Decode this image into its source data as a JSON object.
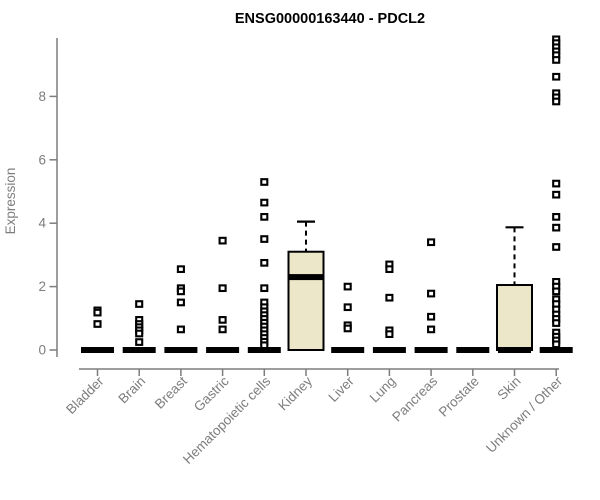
{
  "chart_data": {
    "type": "boxplot",
    "title": "ENSG00000163440 - PDCL2",
    "ylabel": "Expression",
    "xlabel": "",
    "ylim": [
      0,
      9.9
    ],
    "yticks": [
      0,
      2,
      4,
      6,
      8
    ],
    "grid": false,
    "legend": "none",
    "colors": {
      "box_fill": "#ede7ca",
      "box_border": "#000000",
      "median": "#000000",
      "axis": "#7d7d7d",
      "tick_label": "#7d7d7d",
      "title": "#000000",
      "background": "#ffffff"
    },
    "categories": [
      "Bladder",
      "Brain",
      "Breast",
      "Gastric",
      "Hematopoietic cells",
      "Kidney",
      "Liver",
      "Lung",
      "Pancreas",
      "Prostate",
      "Skin",
      "Unknown / Other"
    ],
    "series": [
      {
        "category": "Bladder",
        "q1": 0,
        "median": 0,
        "q3": 0,
        "whisker_low": 0,
        "whisker_high": 0,
        "outliers": [
          1.25,
          1.18,
          0.82
        ]
      },
      {
        "category": "Brain",
        "q1": 0,
        "median": 0,
        "q3": 0,
        "whisker_low": 0,
        "whisker_high": 0,
        "outliers": [
          1.45,
          0.95,
          0.82,
          0.72,
          0.62,
          0.52,
          0.25
        ]
      },
      {
        "category": "Breast",
        "q1": 0,
        "median": 0,
        "q3": 0,
        "whisker_low": 0,
        "whisker_high": 0,
        "outliers": [
          2.55,
          1.95,
          1.85,
          1.5,
          0.65
        ]
      },
      {
        "category": "Gastric",
        "q1": 0,
        "median": 0,
        "q3": 0,
        "whisker_low": 0,
        "whisker_high": 0,
        "outliers": [
          3.45,
          1.95,
          0.95,
          0.65
        ]
      },
      {
        "category": "Hematopoietic cells",
        "q1": 0,
        "median": 0,
        "q3": 0,
        "whisker_low": 0,
        "whisker_high": 0,
        "outliers": [
          5.3,
          4.65,
          4.2,
          3.5,
          2.75,
          1.95,
          1.5,
          1.35,
          1.22,
          1.1,
          0.98,
          0.86,
          0.74,
          0.62,
          0.5,
          0.38,
          0.26,
          0.15
        ]
      },
      {
        "category": "Kidney",
        "q1": 0,
        "median": 2.3,
        "q3": 3.1,
        "whisker_low": 0,
        "whisker_high": 4.05,
        "outliers": []
      },
      {
        "category": "Liver",
        "q1": 0,
        "median": 0,
        "q3": 0,
        "whisker_low": 0,
        "whisker_high": 0,
        "outliers": [
          2.0,
          1.35,
          0.78,
          0.68
        ]
      },
      {
        "category": "Lung",
        "q1": 0,
        "median": 0,
        "q3": 0,
        "whisker_low": 0,
        "whisker_high": 0,
        "outliers": [
          2.7,
          2.55,
          1.65,
          0.62,
          0.5
        ]
      },
      {
        "category": "Pancreas",
        "q1": 0,
        "median": 0,
        "q3": 0,
        "whisker_low": 0,
        "whisker_high": 0,
        "outliers": [
          3.4,
          1.78,
          1.05,
          0.65
        ]
      },
      {
        "category": "Prostate",
        "q1": 0,
        "median": 0,
        "q3": 0,
        "whisker_low": 0,
        "whisker_high": 0,
        "outliers": []
      },
      {
        "category": "Skin",
        "q1": 0,
        "median": 0,
        "q3": 2.05,
        "whisker_low": 0,
        "whisker_high": 3.87,
        "outliers": []
      },
      {
        "category": "Unknown / Other",
        "q1": 0,
        "median": 0,
        "q3": 0,
        "whisker_low": 0,
        "whisker_high": 0,
        "outliers": [
          9.8,
          9.68,
          9.55,
          9.42,
          9.3,
          9.15,
          8.62,
          8.1,
          7.97,
          7.84,
          5.25,
          4.9,
          4.2,
          3.86,
          3.25,
          2.15,
          2.0,
          1.85,
          1.6,
          1.45,
          1.28,
          1.12,
          0.98,
          0.85,
          0.55,
          0.42,
          0.3,
          0.18
        ]
      }
    ]
  }
}
